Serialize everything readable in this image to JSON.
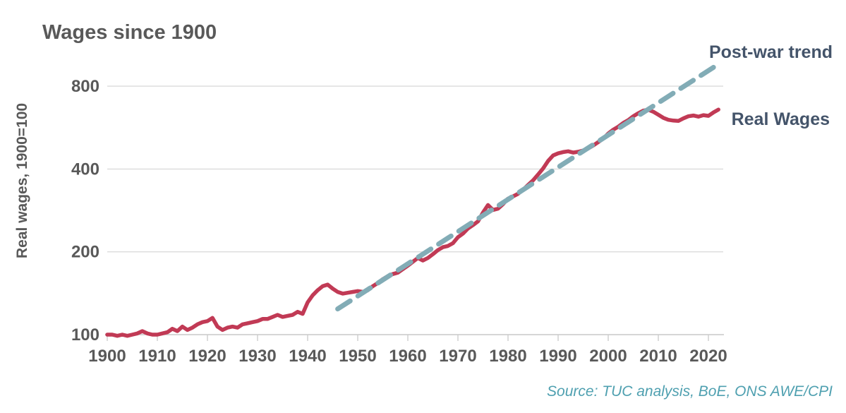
{
  "title": "Wages since 1900",
  "y_axis_title": "Real wages, 1900=100",
  "annotations": {
    "trend": "Post-war trend",
    "real_wages": "Real Wages"
  },
  "source": "Source: TUC analysis, BoE, ONS AWE/CPI",
  "colors": {
    "real_wages_line": "#C13A55",
    "trend_line": "#82ACB6",
    "title_text": "#595959",
    "annotation_text": "#44546A",
    "source_text": "#4FA0B0",
    "gridline": "#DBDBDB",
    "axis": "#C9C9C9"
  },
  "chart_data": {
    "type": "line",
    "title": "Wages since 1900",
    "xlabel": "",
    "ylabel": "Real wages, 1900=100",
    "y_scale": "log2",
    "grid": "horizontal",
    "legend_position": "inline-right-labels",
    "x_ticks": [
      1900,
      1910,
      1920,
      1930,
      1940,
      1950,
      1960,
      1970,
      1980,
      1990,
      2000,
      2010,
      2020
    ],
    "y_ticks": [
      100,
      200,
      400,
      800
    ],
    "xlim": [
      1900,
      2023
    ],
    "ylim": [
      100,
      980
    ],
    "series": [
      {
        "name": "Real Wages",
        "style": "solid",
        "color": "#C13A55",
        "x_start": 1900,
        "x_step": 1,
        "values": [
          100,
          100,
          99,
          100,
          99,
          100,
          101,
          103,
          101,
          100,
          100,
          101,
          102,
          105,
          103,
          107,
          104,
          106,
          109,
          111,
          112,
          115,
          107,
          104,
          106,
          107,
          106,
          109,
          110,
          111,
          112,
          114,
          114,
          116,
          118,
          116,
          117,
          118,
          121,
          119,
          131,
          139,
          145,
          150,
          152,
          147,
          143,
          141,
          142,
          143,
          144,
          143,
          145,
          150,
          154,
          159,
          163,
          166,
          168,
          173,
          178,
          184,
          190,
          186,
          190,
          196,
          203,
          208,
          210,
          215,
          226,
          233,
          243,
          250,
          258,
          278,
          296,
          284,
          287,
          298,
          312,
          318,
          325,
          336,
          350,
          364,
          382,
          402,
          428,
          448,
          456,
          461,
          464,
          459,
          462,
          467,
          475,
          487,
          501,
          516,
          538,
          556,
          570,
          588,
          602,
          622,
          638,
          652,
          657,
          646,
          630,
          614,
          604,
          600,
          598,
          611,
          622,
          626,
          620,
          628,
          624,
          642,
          658
        ]
      },
      {
        "name": "Post-war trend",
        "style": "dashed",
        "color": "#82ACB6",
        "x": [
          1946,
          2022.5
        ],
        "values": [
          124,
          975
        ]
      }
    ]
  }
}
